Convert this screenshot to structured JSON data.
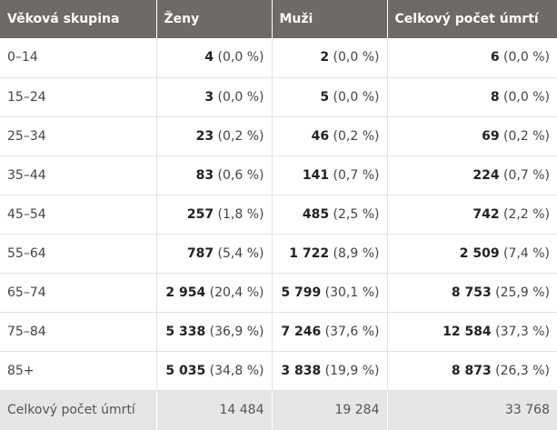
{
  "header": [
    "Věková skupina",
    "Ženy",
    "Muži",
    "Celkový počet úmrtí"
  ],
  "rows": [
    {
      "group": "0–14",
      "women": {
        "n": "4",
        "p": "(0,0 %)"
      },
      "men": {
        "n": "2",
        "p": "(0,0 %)"
      },
      "total": {
        "n": "6",
        "p": "(0,0 %)"
      }
    },
    {
      "group": "15–24",
      "women": {
        "n": "3",
        "p": "(0,0 %)"
      },
      "men": {
        "n": "5",
        "p": "(0,0 %)"
      },
      "total": {
        "n": "8",
        "p": "(0,0 %)"
      }
    },
    {
      "group": "25–34",
      "women": {
        "n": "23",
        "p": "(0,2 %)"
      },
      "men": {
        "n": "46",
        "p": "(0,2 %)"
      },
      "total": {
        "n": "69",
        "p": "(0,2 %)"
      }
    },
    {
      "group": "35–44",
      "women": {
        "n": "83",
        "p": "(0,6 %)"
      },
      "men": {
        "n": "141",
        "p": "(0,7 %)"
      },
      "total": {
        "n": "224",
        "p": "(0,7 %)"
      }
    },
    {
      "group": "45–54",
      "women": {
        "n": "257",
        "p": "(1,8 %)"
      },
      "men": {
        "n": "485",
        "p": "(2,5 %)"
      },
      "total": {
        "n": "742",
        "p": "(2,2 %)"
      }
    },
    {
      "group": "55–64",
      "women": {
        "n": "787",
        "p": "(5,4 %)"
      },
      "men": {
        "n": "1 722",
        "p": "(8,9 %)"
      },
      "total": {
        "n": "2 509",
        "p": "(7,4 %)"
      }
    },
    {
      "group": "65–74",
      "women": {
        "n": "2 954",
        "p": "(20,4 %)"
      },
      "men": {
        "n": "5 799",
        "p": "(30,1 %)"
      },
      "total": {
        "n": "8 753",
        "p": "(25,9 %)"
      }
    },
    {
      "group": "75–84",
      "women": {
        "n": "5 338",
        "p": "(36,9 %)"
      },
      "men": {
        "n": "7 246",
        "p": "(37,6 %)"
      },
      "total": {
        "n": "12 584",
        "p": "(37,3 %)"
      }
    },
    {
      "group": "85+",
      "women": {
        "n": "5 035",
        "p": "(34,8 %)"
      },
      "men": {
        "n": "3 838",
        "p": "(19,9 %)"
      },
      "total": {
        "n": "8 873",
        "p": "(26,3 %)"
      }
    }
  ],
  "footer": {
    "label": "Celkový počet úmrtí",
    "women": "14 484",
    "men": "19 284",
    "total": "33 768"
  }
}
